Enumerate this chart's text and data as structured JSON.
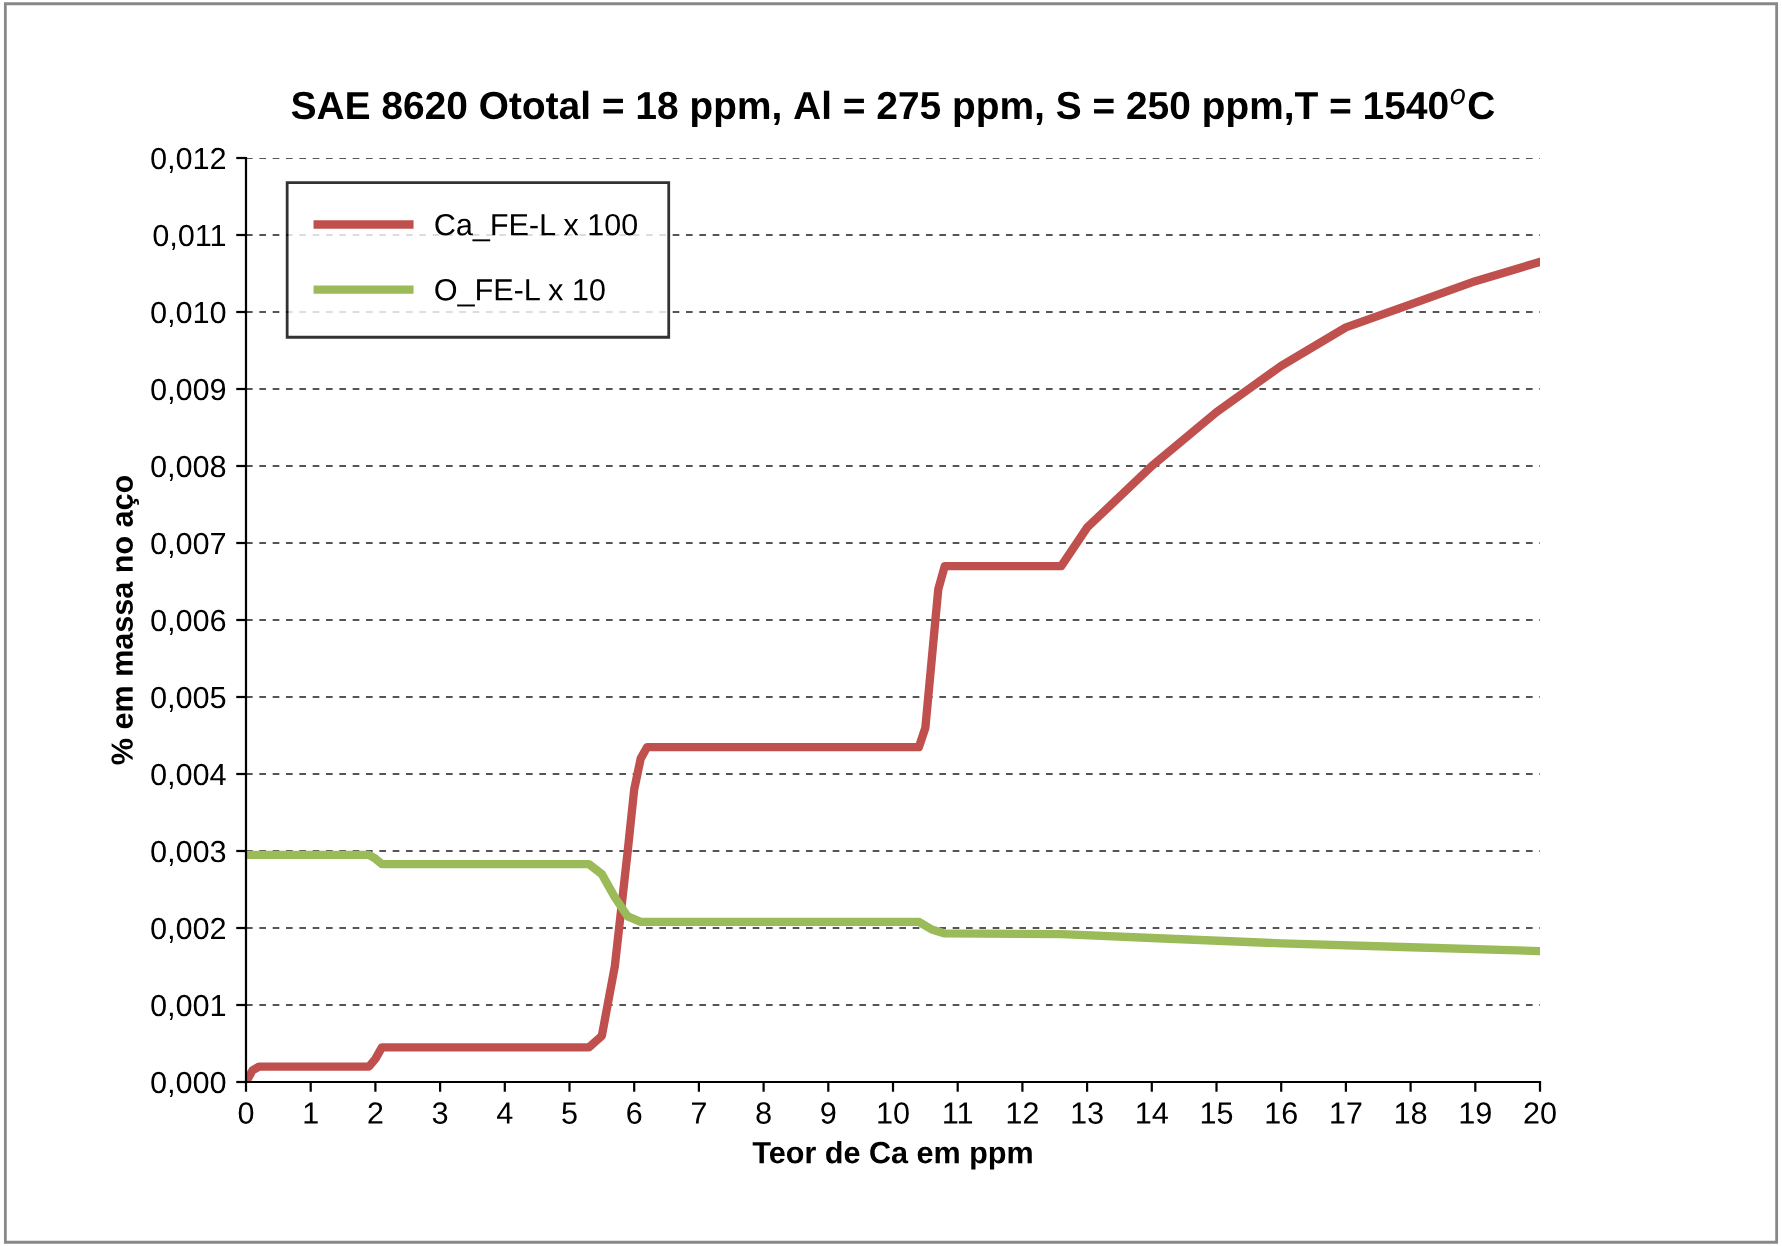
{
  "chart_data": {
    "type": "line",
    "title": "SAE 8620 Ototal = 18 ppm, Al = 275 ppm, S = 250 ppm,T = 1540$^{o}$C",
    "xlabel": "Teor de Ca em ppm",
    "ylabel": "% em massa no aço",
    "series": [
      {
        "name": "Ca_FE-L x 100",
        "color": "#c0504d",
        "x": [
          0,
          0.1,
          0.2,
          1.9,
          2.0,
          2.1,
          5.3,
          5.5,
          5.7,
          5.9,
          6.0,
          6.1,
          6.2,
          10.4,
          10.5,
          10.6,
          10.7,
          10.8,
          12.6,
          13,
          14,
          15,
          16,
          17,
          18,
          19,
          20
        ],
        "values": [
          0.0,
          0.00015,
          0.0002,
          0.0002,
          0.0003,
          0.00045,
          0.00045,
          0.0006,
          0.0015,
          0.003,
          0.0038,
          0.0042,
          0.00435,
          0.00435,
          0.0046,
          0.0055,
          0.0064,
          0.0067,
          0.0067,
          0.0072,
          0.008,
          0.0087,
          0.0093,
          0.0098,
          0.0101,
          0.0104,
          0.01065
        ]
      },
      {
        "name": "O_FE-L x 10",
        "color": "#9bbb59",
        "x": [
          0,
          1.9,
          2.0,
          2.1,
          5.3,
          5.5,
          5.7,
          5.9,
          6.1,
          10.4,
          10.6,
          10.8,
          12.6,
          14,
          16,
          18,
          20
        ],
        "values": [
          0.00295,
          0.00295,
          0.0029,
          0.00283,
          0.00283,
          0.0027,
          0.0024,
          0.00215,
          0.00208,
          0.00208,
          0.00198,
          0.00193,
          0.00192,
          0.00187,
          0.0018,
          0.00175,
          0.0017
        ]
      }
    ],
    "xlim": [
      0,
      20
    ],
    "xticks": [
      0,
      1,
      2,
      3,
      4,
      5,
      6,
      7,
      8,
      9,
      10,
      11,
      12,
      13,
      14,
      15,
      16,
      17,
      18,
      19,
      20
    ],
    "ylim": [
      0,
      0.012
    ],
    "yticks": [
      {
        "value": 0,
        "label": "0,000"
      },
      {
        "value": 0.001,
        "label": "0,001"
      },
      {
        "value": 0.002,
        "label": "0,002"
      },
      {
        "value": 0.003,
        "label": "0,003"
      },
      {
        "value": 0.004,
        "label": "0,004"
      },
      {
        "value": 0.005,
        "label": "0,005"
      },
      {
        "value": 0.006,
        "label": "0,006"
      },
      {
        "value": 0.007,
        "label": "0,007"
      },
      {
        "value": 0.008,
        "label": "0,008"
      },
      {
        "value": 0.009,
        "label": "0,009"
      },
      {
        "value": 0.01,
        "label": "0,010"
      },
      {
        "value": 0.011,
        "label": "0,011"
      },
      {
        "value": 0.012,
        "label": "0,012"
      }
    ],
    "grid": "y",
    "legend": "top left",
    "marker": "none",
    "line_style": "solid"
  }
}
